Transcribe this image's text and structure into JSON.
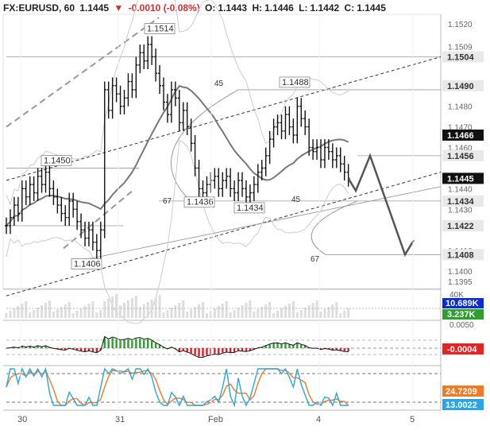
{
  "header": {
    "symbol": "FX:EURUSD, 60",
    "last": "1.1445",
    "change": "-0.0010 (-0.08%)",
    "o_label": "O:",
    "o": "1.1443",
    "h_label": "H:",
    "h": "1.1446",
    "l_label": "L:",
    "l": "1.1442",
    "c_label": "C:",
    "c": "1.1445"
  },
  "colors": {
    "up": "#2e9e2e",
    "down": "#e02020",
    "price_line": "#111111",
    "ma": "#777777",
    "bb": "#cccccc",
    "stoch_k": "#2aa6e6",
    "stoch_d": "#f07b26",
    "tag_dark": "#111111",
    "tag_blue": "#0a2bd6",
    "tag_green": "#2e9e2e",
    "tag_red": "#e52323",
    "tag_orange": "#f07b26",
    "tag_cyan": "#2aa6e6"
  },
  "chart_data": {
    "type": "line",
    "price_axis_ticks": [
      "1.1520",
      "1.1509",
      "1.1504",
      "1.1490",
      "1.1480",
      "1.1470",
      "1.1466",
      "1.1460",
      "1.1456",
      "1.1445",
      "1.1440",
      "1.1434",
      "1.1430",
      "1.1422",
      "1.1410",
      "1.1408",
      "1.1400",
      "1.1395"
    ],
    "price_tags": [
      {
        "value": "1.1504",
        "style": "gray"
      },
      {
        "value": "1.1490",
        "style": "gray"
      },
      {
        "value": "1.1466",
        "style": "dark"
      },
      {
        "value": "1.1456",
        "style": "gray"
      },
      {
        "value": "1.1445",
        "style": "dark"
      },
      {
        "value": "1.1434",
        "style": "gray"
      },
      {
        "value": "1.1422",
        "style": "gray"
      },
      {
        "value": "1.1408",
        "style": "gray"
      }
    ],
    "price_annotations": [
      {
        "text": "1.1514",
        "price": 1.1514
      },
      {
        "text": "1.1488",
        "price": 1.1488
      },
      {
        "text": "1.1450",
        "price": 1.145
      },
      {
        "text": "1.1436",
        "price": 1.1436
      },
      {
        "text": "1.1434",
        "price": 1.1434
      },
      {
        "text": "1.1406",
        "price": 1.1406
      }
    ],
    "fan_labels": [
      "45",
      "67",
      "45",
      "67"
    ],
    "x_axis_labels": [
      "30",
      "31",
      "Feb",
      "4",
      "5"
    ],
    "closes": [
      1.1422,
      1.1426,
      1.1432,
      1.1428,
      1.144,
      1.1436,
      1.1442,
      1.1438,
      1.1446,
      1.1442,
      1.1448,
      1.144,
      1.1436,
      1.1432,
      1.1428,
      1.1426,
      1.1434,
      1.143,
      1.1424,
      1.142,
      1.1416,
      1.142,
      1.1414,
      1.141,
      1.142,
      1.1488,
      1.1478,
      1.149,
      1.1486,
      1.148,
      1.1484,
      1.1492,
      1.1488,
      1.15,
      1.1506,
      1.1502,
      1.151,
      1.1504,
      1.1496,
      1.149,
      1.1482,
      1.1476,
      1.1488,
      1.1484,
      1.1472,
      1.1478,
      1.147,
      1.1462,
      1.145,
      1.144,
      1.1438,
      1.1442,
      1.1444,
      1.1446,
      1.144,
      1.1444,
      1.1446,
      1.144,
      1.1438,
      1.1444,
      1.144,
      1.1436,
      1.1438,
      1.1442,
      1.1448,
      1.145,
      1.1456,
      1.1464,
      1.147,
      1.1472,
      1.1468,
      1.1476,
      1.147,
      1.1466,
      1.148,
      1.1474,
      1.147,
      1.146,
      1.1458,
      1.146,
      1.1454,
      1.146,
      1.1458,
      1.1454,
      1.1456,
      1.1452,
      1.1448,
      1.1445
    ],
    "projection": [
      1.1445,
      1.1439,
      1.1456,
      1.1408,
      1.1415
    ],
    "volume": {
      "label_max": "40K",
      "current": "10.689K",
      "secondary": "3.237K"
    },
    "macd": {
      "axis_label": "0.0050",
      "current": "-0.0004"
    },
    "stochastic": {
      "k": "13.0022",
      "d": "24.7209"
    }
  }
}
